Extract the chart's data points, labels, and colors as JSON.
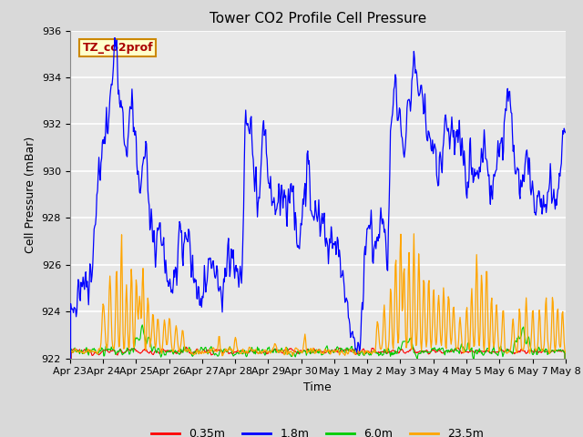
{
  "title": "Tower CO2 Profile Cell Pressure",
  "xlabel": "Time",
  "ylabel": "Cell Pressure (mBar)",
  "ylim": [
    922,
    936
  ],
  "yticks": [
    922,
    924,
    926,
    928,
    930,
    932,
    934,
    936
  ],
  "xtick_labels": [
    "Apr 23",
    "Apr 24",
    "Apr 25",
    "Apr 26",
    "Apr 27",
    "Apr 28",
    "Apr 29",
    "Apr 30",
    "May 1",
    "May 2",
    "May 3",
    "May 4",
    "May 5",
    "May 6",
    "May 7",
    "May 8"
  ],
  "xtick_positions": [
    0,
    1,
    2,
    3,
    4,
    5,
    6,
    7,
    8,
    9,
    10,
    11,
    12,
    13,
    14,
    15
  ],
  "series": {
    "0.35m": {
      "color": "#ff0000",
      "lw": 0.8
    },
    "1.8m": {
      "color": "#0000ff",
      "lw": 0.9
    },
    "6.0m": {
      "color": "#00cc00",
      "lw": 0.8
    },
    "23.5m": {
      "color": "#ffa500",
      "lw": 0.9
    }
  },
  "legend_label": "TZ_co2prof",
  "legend_box_color": "#ffffcc",
  "legend_box_edge": "#cc8800",
  "fig_bg_color": "#d9d9d9",
  "plot_bg_color": "#e8e8e8",
  "grid_color": "#ffffff",
  "title_fontsize": 11,
  "axis_label_fontsize": 9,
  "tick_fontsize": 8,
  "legend_fontsize": 9
}
